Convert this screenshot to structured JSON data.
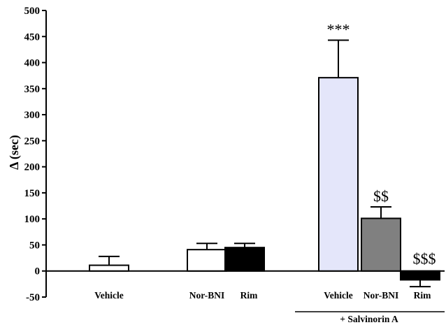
{
  "chart_data": {
    "type": "bar",
    "ylabel": "Δ (sec)",
    "ylim": [
      -50,
      500
    ],
    "yticks": [
      -50,
      0,
      50,
      100,
      150,
      200,
      250,
      300,
      350,
      400,
      450,
      500
    ],
    "grid": false,
    "bars": [
      {
        "label": "Vehicle",
        "value": 11,
        "error": 17,
        "color": "#ffffff",
        "annotation": ""
      },
      {
        "label": "Nor-BNI",
        "value": 41,
        "error": 12,
        "color": "#ffffff",
        "annotation": ""
      },
      {
        "label": "Rim",
        "value": 45,
        "error": 8,
        "color": "#000000",
        "annotation": ""
      },
      {
        "label": "Vehicle",
        "value": 371,
        "error": 72,
        "color": "#e4e6fa",
        "annotation": "***"
      },
      {
        "label": "Nor-BNI",
        "value": 101,
        "error": 22,
        "color": "#808080",
        "annotation": "$$"
      },
      {
        "label": "Rim",
        "value": -17,
        "error": 13,
        "color": "#000000",
        "annotation": "$$$"
      }
    ],
    "group_label": "+ Salvinorin A"
  }
}
